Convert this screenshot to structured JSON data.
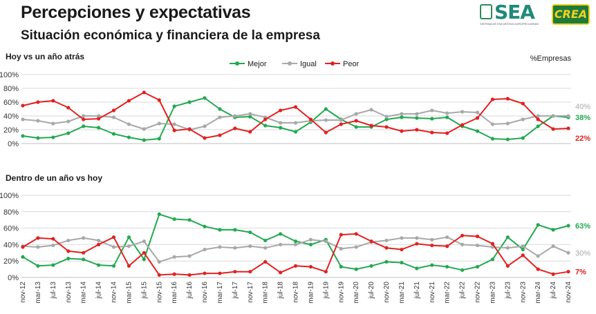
{
  "title": "Percepciones y expectativas",
  "subtitle": "Situación económica y financiera de la empresa",
  "logos": {
    "sea": "SEA",
    "sea_tagline": "SISTEMA DE ENCUESTAS AGROPECUARIAS",
    "crea": "CREA"
  },
  "unit_note": "%Empresas",
  "colors": {
    "Mejor": "#22a94f",
    "Igual": "#a8a8a8",
    "Peor": "#e32020",
    "grid": "#d9d9d9"
  },
  "chart_data": [
    {
      "type": "line",
      "title": "Hoy vs un año atrás",
      "ylim": [
        0,
        100
      ],
      "yticks": [
        "0%",
        "20%",
        "40%",
        "60%",
        "80%",
        "100%"
      ],
      "grid": true,
      "legend": "top-center",
      "x": [
        "nov-12",
        "mar-13",
        "jul-13",
        "nov-13",
        "mar-14",
        "jul-14",
        "nov-14",
        "mar-15",
        "jul-15",
        "nov-15",
        "mar-16",
        "jul-16",
        "nov-16",
        "mar-17",
        "jul-17",
        "nov-17",
        "mar-18",
        "jul-18",
        "nov-18",
        "mar-19",
        "jul-19",
        "nov-19",
        "mar-20",
        "jul-20",
        "nov-20",
        "mar-21",
        "jul-21",
        "nov-21",
        "mar-22",
        "jul-22",
        "nov-22",
        "mar-23",
        "jul-23",
        "nov-23",
        "mar-24",
        "jul-24",
        "nov-24"
      ],
      "series": [
        {
          "name": "Mejor",
          "values": [
            11,
            8,
            9,
            15,
            25,
            23,
            14,
            9,
            5,
            7,
            54,
            60,
            66,
            50,
            38,
            39,
            26,
            23,
            17,
            31,
            50,
            35,
            24,
            24,
            35,
            38,
            37,
            36,
            38,
            25,
            18,
            7,
            6,
            8,
            25,
            40,
            38
          ],
          "end_label": "38%"
        },
        {
          "name": "Igual",
          "values": [
            35,
            33,
            29,
            32,
            40,
            40,
            38,
            28,
            21,
            29,
            28,
            20,
            25,
            38,
            40,
            43,
            38,
            30,
            30,
            33,
            34,
            34,
            43,
            49,
            39,
            43,
            43,
            48,
            44,
            46,
            45,
            28,
            29,
            35,
            40,
            40,
            40
          ],
          "end_label": "40%"
        },
        {
          "name": "Peor",
          "values": [
            55,
            60,
            62,
            52,
            35,
            36,
            48,
            62,
            74,
            63,
            19,
            21,
            8,
            12,
            22,
            17,
            35,
            48,
            53,
            35,
            16,
            28,
            33,
            26,
            24,
            18,
            20,
            16,
            15,
            27,
            37,
            64,
            65,
            58,
            35,
            21,
            22
          ],
          "end_label": "22%"
        }
      ]
    },
    {
      "type": "line",
      "title": "Dentro de un año vs hoy",
      "ylim": [
        0,
        100
      ],
      "yticks": [
        "0%",
        "20%",
        "40%",
        "60%",
        "80%",
        "100%"
      ],
      "grid": true,
      "x": [
        "nov-12",
        "mar-13",
        "jul-13",
        "nov-13",
        "mar-14",
        "jul-14",
        "nov-14",
        "mar-15",
        "jul-15",
        "nov-15",
        "mar-16",
        "jul-16",
        "nov-16",
        "mar-17",
        "jul-17",
        "nov-17",
        "mar-18",
        "jul-18",
        "nov-18",
        "mar-19",
        "jul-19",
        "nov-19",
        "mar-20",
        "jul-20",
        "nov-20",
        "mar-21",
        "jul-21",
        "nov-21",
        "mar-22",
        "jul-22",
        "nov-22",
        "mar-23",
        "jul-23",
        "nov-23",
        "mar-24",
        "jul-24",
        "nov-24"
      ],
      "series": [
        {
          "name": "Mejor",
          "values": [
            25,
            14,
            15,
            23,
            22,
            15,
            14,
            49,
            22,
            77,
            71,
            70,
            62,
            58,
            58,
            55,
            45,
            53,
            44,
            40,
            46,
            13,
            10,
            14,
            19,
            18,
            11,
            15,
            13,
            9,
            13,
            22,
            49,
            34,
            64,
            58,
            63
          ],
          "end_label": "63%"
        },
        {
          "name": "Igual",
          "values": [
            38,
            37,
            39,
            45,
            48,
            45,
            37,
            38,
            44,
            19,
            25,
            26,
            34,
            37,
            36,
            38,
            36,
            40,
            40,
            46,
            44,
            35,
            37,
            43,
            45,
            48,
            48,
            46,
            49,
            40,
            39,
            37,
            36,
            38,
            26,
            38,
            30
          ],
          "end_label": "30%"
        },
        {
          "name": "Peor",
          "values": [
            37,
            48,
            47,
            32,
            30,
            40,
            49,
            14,
            30,
            3,
            4,
            3,
            5,
            5,
            7,
            7,
            19,
            6,
            14,
            13,
            7,
            52,
            53,
            44,
            36,
            34,
            41,
            39,
            38,
            51,
            50,
            41,
            14,
            27,
            10,
            4,
            7
          ],
          "end_label": "7%"
        }
      ]
    }
  ]
}
